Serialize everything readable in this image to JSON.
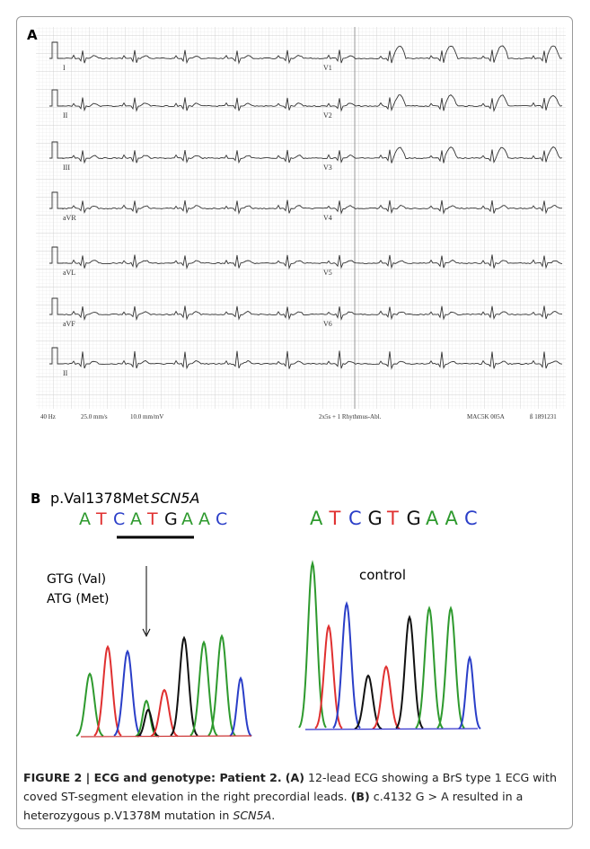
{
  "panel_a": {
    "label": "A",
    "leads_left": [
      "I",
      "II",
      "III",
      "aVR",
      "aVL",
      "aVF",
      "II"
    ],
    "leads_right": [
      "V1",
      "V2",
      "V3",
      "V4",
      "V5",
      "V6"
    ],
    "footer": [
      "40 Hz",
      "25.0 mm/s",
      "10.0 mm/mV",
      "2x5s + 1 Rhythmus-Abl.",
      "MAC5K 005A",
      "ß 1891231"
    ]
  },
  "panel_b": {
    "label": "B",
    "mutation": "p.Val1378Met",
    "gene": "SCN5A",
    "seq_mutant": [
      "A",
      "T",
      "C",
      "A",
      "T",
      "G",
      "A",
      "A",
      "C"
    ],
    "seq_control": [
      "A",
      "T",
      "C",
      "G",
      "T",
      "G",
      "A",
      "A",
      "C"
    ],
    "codon_ref": "GTG (Val)",
    "codon_alt": "ATG (Met)",
    "control_label": "control"
  },
  "caption": {
    "title": "FIGURE 2 | ECG and genotype: Patient 2.",
    "a_tag": "(A)",
    "a_text": " 12-lead ECG showing a BrS type 1 ECG with coved ST-segment elevation in the right precordial leads.",
    "b_tag": "(B)",
    "b_text": " c.4132 G > A resulted in a heterozygous p.V1378M mutation in ",
    "b_gene": "SCN5A",
    "b_end": "."
  }
}
